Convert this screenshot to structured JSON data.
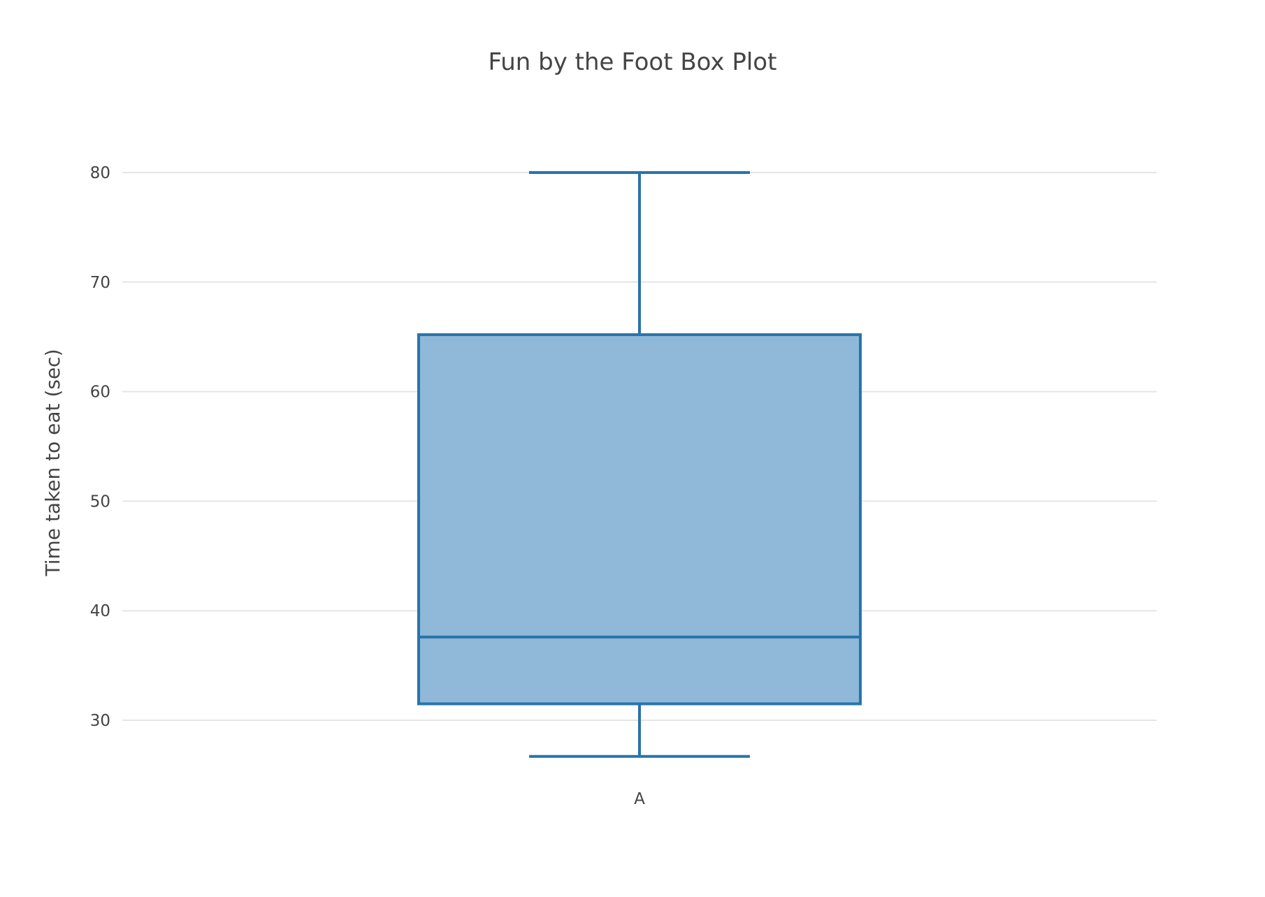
{
  "chart_data": {
    "type": "box",
    "title": "Fun by the Foot Box Plot",
    "xlabel": "",
    "ylabel": "Time taken to eat (sec)",
    "ylim": [
      24,
      90
    ],
    "yticks": [
      30,
      40,
      50,
      60,
      70,
      80
    ],
    "grid": true,
    "categories": [
      "A"
    ],
    "series": [
      {
        "category": "A",
        "lower_whisker": 26.7,
        "q1": 31.5,
        "median": 37.6,
        "q3": 65.2,
        "upper_whisker": 80
      }
    ],
    "colors": {
      "line": "#2874ab",
      "fill": "#8fb8d9",
      "grid": "#e5e5e5",
      "text": "#444444"
    }
  }
}
